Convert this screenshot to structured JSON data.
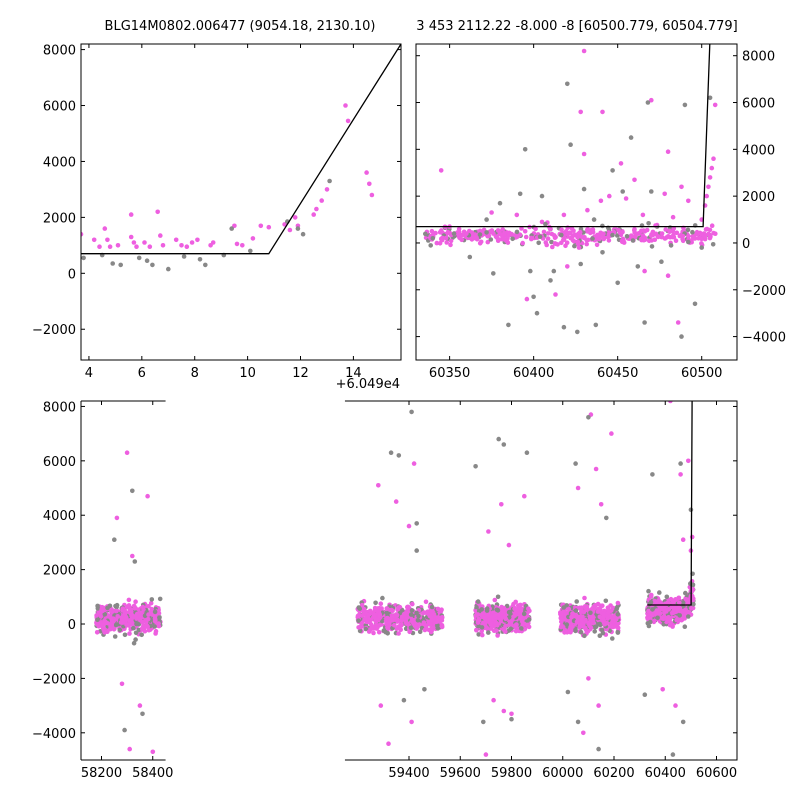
{
  "chart_data": [
    {
      "type": "scatter",
      "title": "BLG14M0802.006477 (9054.18, 2130.10)",
      "x_offset_label": "+6.049e4",
      "xlim": [
        3.7,
        15.8
      ],
      "ylim": [
        -3100,
        8200
      ],
      "xticks": [
        4,
        6,
        8,
        10,
        12,
        14
      ],
      "yticks": [
        -2000,
        0,
        2000,
        4000,
        6000,
        8000
      ],
      "ytick_side": "left",
      "grid": false,
      "series": [
        {
          "color": "#ee5fe0",
          "points": [
            [
              3.7,
              1400
            ],
            [
              4.2,
              1200
            ],
            [
              4.4,
              950
            ],
            [
              4.6,
              1600
            ],
            [
              4.7,
              1200
            ],
            [
              4.8,
              950
            ],
            [
              5.1,
              1000
            ],
            [
              5.6,
              2100
            ],
            [
              5.6,
              1300
            ],
            [
              5.7,
              1100
            ],
            [
              5.8,
              950
            ],
            [
              6.1,
              1100
            ],
            [
              6.3,
              950
            ],
            [
              6.6,
              2200
            ],
            [
              6.7,
              1350
            ],
            [
              6.8,
              1000
            ],
            [
              7.3,
              1200
            ],
            [
              7.5,
              1000
            ],
            [
              7.7,
              950
            ],
            [
              7.9,
              1100
            ],
            [
              8.1,
              1200
            ],
            [
              8.6,
              1000
            ],
            [
              8.7,
              1100
            ],
            [
              9.5,
              1700
            ],
            [
              9.6,
              1050
            ],
            [
              9.8,
              1000
            ],
            [
              10.2,
              1250
            ],
            [
              10.5,
              1700
            ],
            [
              10.8,
              1650
            ],
            [
              11.4,
              1750
            ],
            [
              11.6,
              1550
            ],
            [
              11.8,
              2000
            ],
            [
              11.9,
              1700
            ],
            [
              12.5,
              2100
            ],
            [
              12.6,
              2300
            ],
            [
              12.8,
              2600
            ],
            [
              13.0,
              3000
            ],
            [
              13.7,
              6000
            ],
            [
              13.8,
              5450
            ],
            [
              14.5,
              3600
            ],
            [
              14.6,
              3200
            ],
            [
              14.7,
              2800
            ]
          ]
        },
        {
          "color": "#888888",
          "points": [
            [
              3.8,
              550
            ],
            [
              4.5,
              650
            ],
            [
              4.9,
              350
            ],
            [
              5.2,
              300
            ],
            [
              5.9,
              550
            ],
            [
              6.2,
              450
            ],
            [
              6.4,
              300
            ],
            [
              7.0,
              150
            ],
            [
              7.6,
              600
            ],
            [
              8.2,
              500
            ],
            [
              8.4,
              300
            ],
            [
              9.1,
              650
            ],
            [
              9.4,
              1600
            ],
            [
              10.1,
              800
            ],
            [
              11.5,
              1850
            ],
            [
              11.9,
              1600
            ],
            [
              12.1,
              1400
            ],
            [
              13.1,
              3300
            ]
          ]
        }
      ],
      "model_line": [
        [
          3.7,
          700
        ],
        [
          10.8,
          700
        ],
        [
          15.8,
          8200
        ]
      ]
    },
    {
      "type": "scatter",
      "title": "3 453 2112.22 -8.000 -8 [60500.779, 60504.779]",
      "xlim": [
        60330,
        60521
      ],
      "ylim": [
        -5000,
        8500
      ],
      "xticks": [
        60350,
        60400,
        60450,
        60500
      ],
      "yticks": [
        -4000,
        -2000,
        0,
        2000,
        4000,
        6000,
        8000
      ],
      "ytick_side": "right",
      "grid": false,
      "generated_band": {
        "x_range": [
          60335,
          60509
        ],
        "center": 300,
        "spread": 260
      },
      "series": [
        {
          "color": "#ee5fe0",
          "points": [
            [
              60345,
              3100
            ],
            [
              60350,
              700
            ],
            [
              60360,
              400
            ],
            [
              60375,
              1300
            ],
            [
              60390,
              1200
            ],
            [
              60395,
              500
            ],
            [
              60405,
              900
            ],
            [
              60410,
              600
            ],
            [
              60418,
              1200
            ],
            [
              60428,
              5600
            ],
            [
              60430,
              3800
            ],
            [
              60432,
              1400
            ],
            [
              60441,
              5600
            ],
            [
              60452,
              3400
            ],
            [
              60460,
              2700
            ],
            [
              60465,
              1200
            ],
            [
              60470,
              6100
            ],
            [
              60478,
              2100
            ],
            [
              60480,
              3900
            ],
            [
              60483,
              1100
            ],
            [
              60488,
              2400
            ],
            [
              60492,
              1800
            ],
            [
              60500,
              1000
            ],
            [
              60502,
              1600
            ],
            [
              60503,
              2000
            ],
            [
              60504,
              2400
            ],
            [
              60505,
              2800
            ],
            [
              60506,
              3200
            ],
            [
              60507,
              3600
            ],
            [
              60508,
              5900
            ],
            [
              60440,
              1800
            ],
            [
              60445,
              2000
            ],
            [
              60455,
              1900
            ],
            [
              60420,
              -1000
            ],
            [
              60396,
              -2400
            ],
            [
              60466,
              -1200
            ],
            [
              60480,
              -1400
            ],
            [
              60486,
              -3400
            ],
            [
              60427,
              -200
            ],
            [
              60430,
              8200
            ],
            [
              60413,
              -2200
            ]
          ]
        },
        {
          "color": "#888888",
          "points": [
            [
              60340,
              200
            ],
            [
              60362,
              -600
            ],
            [
              60376,
              -1300
            ],
            [
              60380,
              1700
            ],
            [
              60392,
              2100
            ],
            [
              60398,
              -1200
            ],
            [
              60400,
              -2300
            ],
            [
              60402,
              -3000
            ],
            [
              60405,
              2000
            ],
            [
              60407,
              800
            ],
            [
              60410,
              -1600
            ],
            [
              60418,
              -3600
            ],
            [
              60420,
              6800
            ],
            [
              60422,
              4200
            ],
            [
              60428,
              -900
            ],
            [
              60430,
              2300
            ],
            [
              60436,
              1000
            ],
            [
              60437,
              -3500
            ],
            [
              60441,
              -400
            ],
            [
              60447,
              3100
            ],
            [
              60450,
              -1700
            ],
            [
              60453,
              2200
            ],
            [
              60458,
              4500
            ],
            [
              60462,
              -1000
            ],
            [
              60466,
              -3400
            ],
            [
              60468,
              6000
            ],
            [
              60470,
              2200
            ],
            [
              60476,
              -800
            ],
            [
              60488,
              -4000
            ],
            [
              60490,
              5900
            ],
            [
              60496,
              -2600
            ],
            [
              60500,
              -200
            ],
            [
              60505,
              6200
            ],
            [
              60385,
              -3500
            ],
            [
              60395,
              4000
            ],
            [
              60412,
              -1200
            ],
            [
              60426,
              -3800
            ],
            [
              60372,
              1000
            ]
          ]
        }
      ],
      "model_line": [
        [
          60330,
          700
        ],
        [
          60500.8,
          700
        ],
        [
          60504.8,
          8500
        ]
      ]
    },
    {
      "type": "scatter",
      "xlim": [
        58120,
        60680
      ],
      "ylim": [
        -5000,
        8200
      ],
      "xticks": [
        58200,
        58400,
        59400,
        59600,
        59800,
        60000,
        60200,
        60400,
        60600
      ],
      "yticks": [
        -4000,
        -2000,
        0,
        2000,
        4000,
        6000,
        8000
      ],
      "ytick_side": "left",
      "grid": false,
      "broken_axis_gap": [
        58450,
        59150
      ],
      "generated_seasons": [
        {
          "x_range": [
            58180,
            58430
          ],
          "center": 220,
          "spread": 330
        },
        {
          "x_range": [
            59200,
            59530
          ],
          "center": 220,
          "spread": 330
        },
        {
          "x_range": [
            59660,
            59870
          ],
          "center": 220,
          "spread": 330
        },
        {
          "x_range": [
            59990,
            60220
          ],
          "center": 220,
          "spread": 330
        },
        {
          "x_range": [
            60330,
            60510
          ],
          "center": 500,
          "spread": 300
        }
      ],
      "series": [
        {
          "color": "#ee5fe0",
          "points": [
            [
              58300,
              6300
            ],
            [
              58380,
              4700
            ],
            [
              58260,
              3900
            ],
            [
              58320,
              2500
            ],
            [
              58280,
              -2200
            ],
            [
              58350,
              -3000
            ],
            [
              58310,
              -4600
            ],
            [
              58400,
              -4700
            ],
            [
              59280,
              5100
            ],
            [
              59350,
              4500
            ],
            [
              59420,
              5900
            ],
            [
              59400,
              3600
            ],
            [
              59290,
              -3000
            ],
            [
              59320,
              -4400
            ],
            [
              59410,
              -3600
            ],
            [
              59700,
              -4800
            ],
            [
              59710,
              3400
            ],
            [
              59760,
              4400
            ],
            [
              59790,
              2900
            ],
            [
              59850,
              4700
            ],
            [
              59730,
              -2800
            ],
            [
              59770,
              -3200
            ],
            [
              59800,
              -3300
            ],
            [
              60060,
              5000
            ],
            [
              60110,
              7700
            ],
            [
              60130,
              5700
            ],
            [
              60150,
              4400
            ],
            [
              60190,
              7000
            ],
            [
              60100,
              -2000
            ],
            [
              60140,
              -3000
            ],
            [
              60080,
              -4000
            ],
            [
              60420,
              8200
            ],
            [
              60460,
              5500
            ],
            [
              60490,
              6000
            ],
            [
              60470,
              3100
            ],
            [
              60440,
              -3000
            ],
            [
              60390,
              -2400
            ],
            [
              60500,
              2700
            ],
            [
              60505,
              3200
            ]
          ]
        },
        {
          "color": "#888888",
          "points": [
            [
              58250,
              3100
            ],
            [
              58320,
              4900
            ],
            [
              58290,
              -3900
            ],
            [
              58360,
              -3300
            ],
            [
              58330,
              2300
            ],
            [
              59410,
              7800
            ],
            [
              59330,
              6300
            ],
            [
              59360,
              6200
            ],
            [
              59430,
              3700
            ],
            [
              59380,
              -2800
            ],
            [
              59460,
              -2400
            ],
            [
              59430,
              2700
            ],
            [
              59660,
              5800
            ],
            [
              59750,
              6800
            ],
            [
              59770,
              6600
            ],
            [
              59860,
              6300
            ],
            [
              59800,
              -3500
            ],
            [
              59690,
              -3600
            ],
            [
              60100,
              7600
            ],
            [
              60050,
              5900
            ],
            [
              60140,
              -4600
            ],
            [
              60020,
              -2500
            ],
            [
              60060,
              -3600
            ],
            [
              60170,
              3900
            ],
            [
              60350,
              5500
            ],
            [
              60460,
              5900
            ],
            [
              60430,
              -4800
            ],
            [
              60500,
              4200
            ],
            [
              60320,
              -2600
            ],
            [
              60470,
              -3600
            ]
          ]
        }
      ],
      "model_line": [
        [
          60330,
          700
        ],
        [
          60500.8,
          700
        ],
        [
          60504.8,
          8200
        ]
      ]
    }
  ]
}
